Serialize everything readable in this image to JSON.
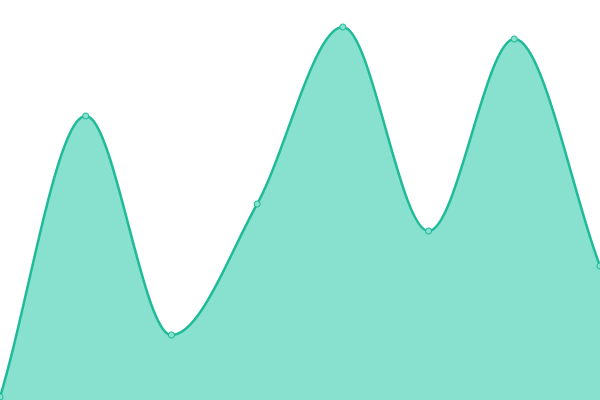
{
  "chart_data": {
    "type": "area",
    "values": [
      3,
      284,
      65,
      196,
      373,
      169,
      361,
      134
    ],
    "ylim": [
      0,
      400
    ],
    "color": "#1fba98",
    "fill": "#88e0cf"
  }
}
